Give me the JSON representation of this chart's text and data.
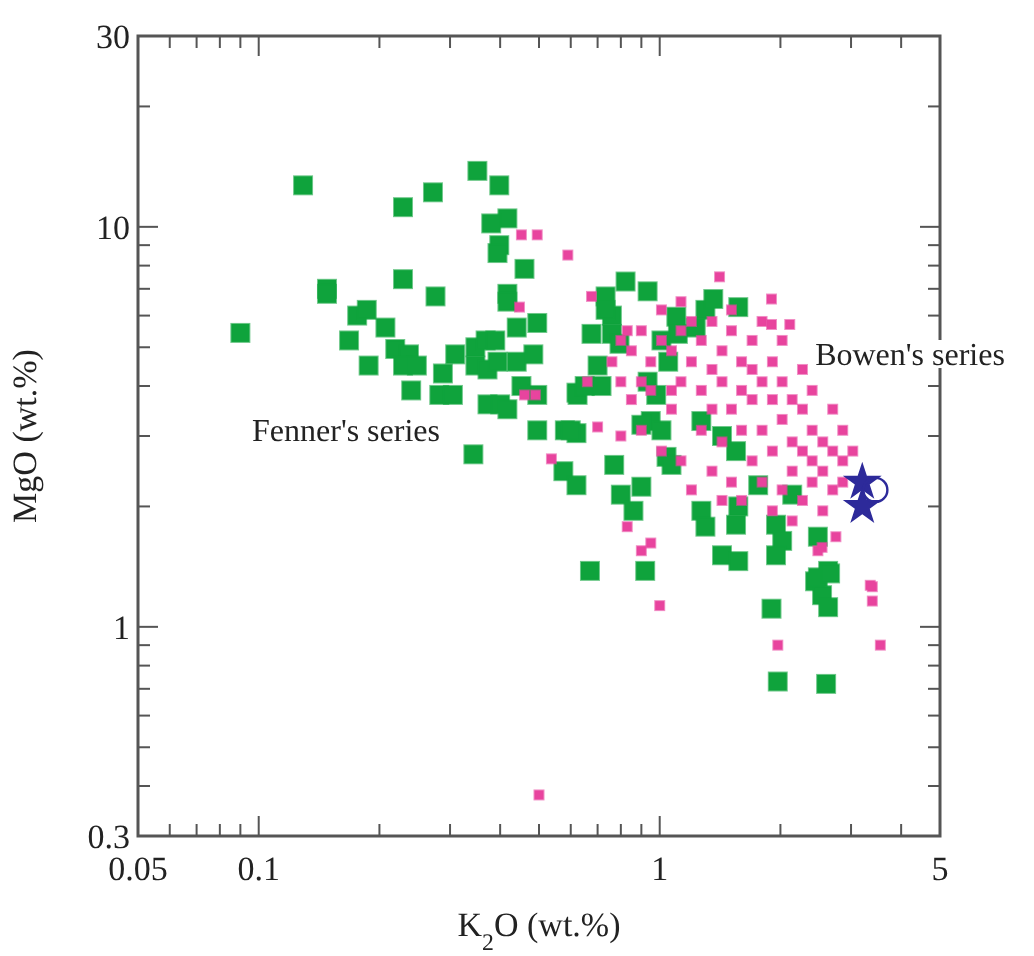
{
  "chart_data": {
    "type": "scatter",
    "xlabel": "K$_{2}$O (wt.%)",
    "ylabel": "MgO (wt.%)",
    "log": "xy",
    "grid": false,
    "xlim": [
      0.05,
      5
    ],
    "ylim": [
      0.3,
      30
    ],
    "xticks": [
      0.05,
      {
        "value": 0.06,
        "label": null
      },
      {
        "value": 0.07,
        "label": null
      },
      {
        "value": 0.08,
        "label": null
      },
      {
        "value": 0.09,
        "label": null
      },
      0.1,
      {
        "value": 0.2,
        "label": null
      },
      {
        "value": 0.3,
        "label": null
      },
      {
        "value": 0.4,
        "label": null
      },
      {
        "value": 0.5,
        "label": null
      },
      {
        "value": 0.6,
        "label": null
      },
      {
        "value": 0.7,
        "label": null
      },
      {
        "value": 0.8,
        "label": null
      },
      {
        "value": 0.9,
        "label": null
      },
      1,
      {
        "value": 2,
        "label": null
      },
      {
        "value": 3,
        "label": null
      },
      {
        "value": 4,
        "label": null
      },
      5
    ],
    "yticks": [
      0.3,
      {
        "value": 0.4,
        "label": null
      },
      {
        "value": 0.5,
        "label": null
      },
      {
        "value": 0.6,
        "label": null
      },
      {
        "value": 0.7,
        "label": null
      },
      {
        "value": 0.8,
        "label": null
      },
      {
        "value": 0.9,
        "label": null
      },
      1,
      {
        "value": 2,
        "label": null
      },
      {
        "value": 3,
        "label": null
      },
      {
        "value": 4,
        "label": null
      },
      {
        "value": 5,
        "label": null
      },
      {
        "value": 6,
        "label": null
      },
      {
        "value": 7,
        "label": null
      },
      {
        "value": 8,
        "label": null
      },
      {
        "value": 9,
        "label": null
      },
      10,
      {
        "value": 20,
        "label": null
      },
      30
    ],
    "series": [
      {
        "name": "Fenner's series",
        "color": "#0fa33c",
        "marker": "square",
        "x": [
          0.09,
          0.129,
          0.148,
          0.148,
          0.229,
          0.272,
          0.351,
          0.398,
          0.417,
          0.38,
          0.398,
          0.394,
          0.46,
          0.229,
          0.276,
          0.417,
          0.417,
          0.176,
          0.186,
          0.168,
          0.207,
          0.219,
          0.237,
          0.188,
          0.229,
          0.248,
          0.24,
          0.288,
          0.309,
          0.282,
          0.305,
          0.347,
          0.368,
          0.389,
          0.347,
          0.372,
          0.394,
          0.44,
          0.484,
          0.495,
          0.44,
          0.452,
          0.372,
          0.4,
          0.417,
          0.495,
          0.495,
          0.343,
          0.58,
          0.62,
          0.575,
          0.62,
          0.62,
          0.822,
          0.933,
          0.733,
          0.76,
          0.733,
          0.676,
          0.76,
          0.794,
          0.7,
          0.624,
          0.65,
          0.716,
          0.6,
          0.77,
          0.8,
          0.9,
          0.86,
          0.67,
          0.92,
          1.1,
          1.11,
          1.23,
          1.3,
          1.36,
          1.57,
          1.01,
          1.05,
          0.933,
          0.98,
          0.95,
          1.01,
          0.9,
          1.04,
          1.07,
          1.27,
          1.43,
          1.55,
          1.27,
          1.3,
          1.57,
          1.55,
          1.43,
          1.57,
          1.95,
          2.02,
          1.95,
          1.76,
          2.14,
          2.48,
          2.63,
          2.44,
          2.54,
          2.48,
          2.66,
          1.9,
          2.63,
          1.97,
          2.6
        ],
        "values": [
          5.43,
          12.7,
          7.0,
          6.8,
          11.2,
          12.2,
          13.8,
          12.7,
          10.5,
          10.2,
          9.0,
          8.6,
          7.85,
          7.4,
          6.7,
          6.8,
          6.5,
          6.0,
          6.2,
          5.2,
          5.6,
          4.95,
          4.8,
          4.5,
          4.5,
          4.5,
          3.9,
          4.3,
          4.8,
          3.8,
          3.8,
          5.0,
          5.2,
          5.2,
          4.5,
          4.4,
          4.6,
          4.6,
          4.8,
          5.75,
          5.6,
          4.0,
          3.6,
          3.6,
          3.5,
          3.8,
          3.1,
          2.7,
          3.1,
          3.05,
          2.45,
          2.26,
          3.85,
          7.3,
          6.9,
          6.7,
          6.0,
          6.2,
          5.4,
          5.4,
          5.1,
          4.5,
          3.8,
          4.0,
          4.0,
          3.1,
          2.54,
          2.14,
          2.24,
          1.95,
          1.38,
          1.38,
          5.96,
          5.4,
          5.6,
          6.2,
          6.6,
          6.3,
          5.2,
          4.6,
          4.1,
          3.8,
          3.27,
          3.1,
          3.2,
          2.66,
          2.54,
          3.27,
          3.0,
          2.75,
          1.95,
          1.78,
          2.0,
          1.8,
          1.51,
          1.46,
          1.8,
          1.64,
          1.51,
          2.26,
          2.14,
          1.68,
          1.38,
          1.3,
          1.2,
          1.33,
          1.36,
          1.11,
          1.12,
          0.73,
          0.72
        ]
      },
      {
        "name": "Bowen's series",
        "color": "#e8449e",
        "marker": "square",
        "x": [
          0.8,
          0.85,
          0.9,
          0.95,
          1.01,
          1.07,
          1.13,
          1.2,
          1.27,
          1.35,
          1.43,
          1.51,
          1.6,
          1.13,
          1.27,
          1.43,
          1.6,
          1.7,
          1.8,
          1.91,
          2.02,
          2.14,
          1.35,
          1.51,
          1.7,
          1.91,
          2.02,
          2.27,
          2.4,
          2.55,
          1.8,
          1.6,
          2.14,
          2.27,
          2.7,
          2.86,
          1.91,
          1.7,
          2.14,
          2.4,
          2.55,
          2.7,
          2.27,
          2.55,
          2.86,
          2.02,
          1.8,
          1.43,
          1.27,
          1.07,
          0.95,
          0.85,
          0.9,
          1.01,
          1.13,
          1.2,
          1.51,
          1.43,
          1.35,
          1.6,
          1.91,
          2.14,
          2.4,
          1.7,
          1.51,
          1.8,
          1.01,
          1.13,
          2.02,
          2.27,
          2.4,
          2.7,
          2.86,
          3.03,
          0.9,
          0.8,
          0.76,
          1.2,
          1.35,
          1.07,
          0.59,
          0.452,
          0.495,
          0.447,
          0.46,
          0.49,
          0.537,
          1.41,
          1.9,
          2.11,
          1.9,
          0.676,
          0.83,
          0.66,
          0.7,
          0.8,
          0.83,
          0.9,
          0.95,
          2.75,
          2.48,
          2.54,
          3.39,
          1.0,
          3.35,
          3.39,
          1.97,
          3.55,
          0.5
        ],
        "values": [
          5.2,
          4.9,
          5.5,
          4.6,
          5.2,
          4.9,
          5.5,
          4.6,
          5.2,
          5.8,
          4.9,
          5.5,
          4.6,
          4.1,
          3.9,
          4.1,
          3.9,
          4.4,
          4.1,
          4.6,
          4.1,
          3.7,
          3.5,
          3.5,
          3.7,
          3.7,
          3.3,
          3.5,
          3.1,
          2.9,
          3.1,
          3.1,
          2.9,
          2.75,
          2.75,
          2.6,
          2.75,
          2.6,
          2.45,
          2.3,
          2.45,
          2.2,
          2.07,
          1.95,
          2.3,
          2.2,
          2.3,
          2.9,
          3.1,
          3.5,
          3.9,
          3.7,
          3.1,
          2.75,
          2.6,
          2.2,
          2.3,
          2.07,
          2.45,
          2.07,
          1.95,
          1.84,
          2.6,
          5.2,
          6.2,
          5.8,
          6.2,
          6.5,
          5.2,
          4.4,
          3.9,
          3.5,
          3.1,
          2.75,
          4.1,
          4.1,
          4.6,
          5.8,
          4.4,
          3.9,
          8.5,
          9.55,
          9.55,
          6.3,
          3.8,
          3.8,
          2.63,
          7.5,
          6.6,
          5.7,
          5.7,
          6.7,
          5.5,
          4.1,
          3.16,
          3.0,
          1.78,
          1.55,
          1.62,
          1.68,
          1.55,
          1.58,
          1.26,
          1.13,
          1.27,
          1.16,
          0.9,
          0.9,
          0.38
        ]
      },
      {
        "color": "#2d2a9a",
        "marker": "star",
        "x": [
          3.2,
          3.2
        ],
        "values": [
          2.3,
          2.0
        ]
      },
      {
        "color": "#2d2a9a",
        "marker": "circle",
        "x": [
          3.45
        ],
        "values": [
          2.2
        ]
      }
    ]
  }
}
